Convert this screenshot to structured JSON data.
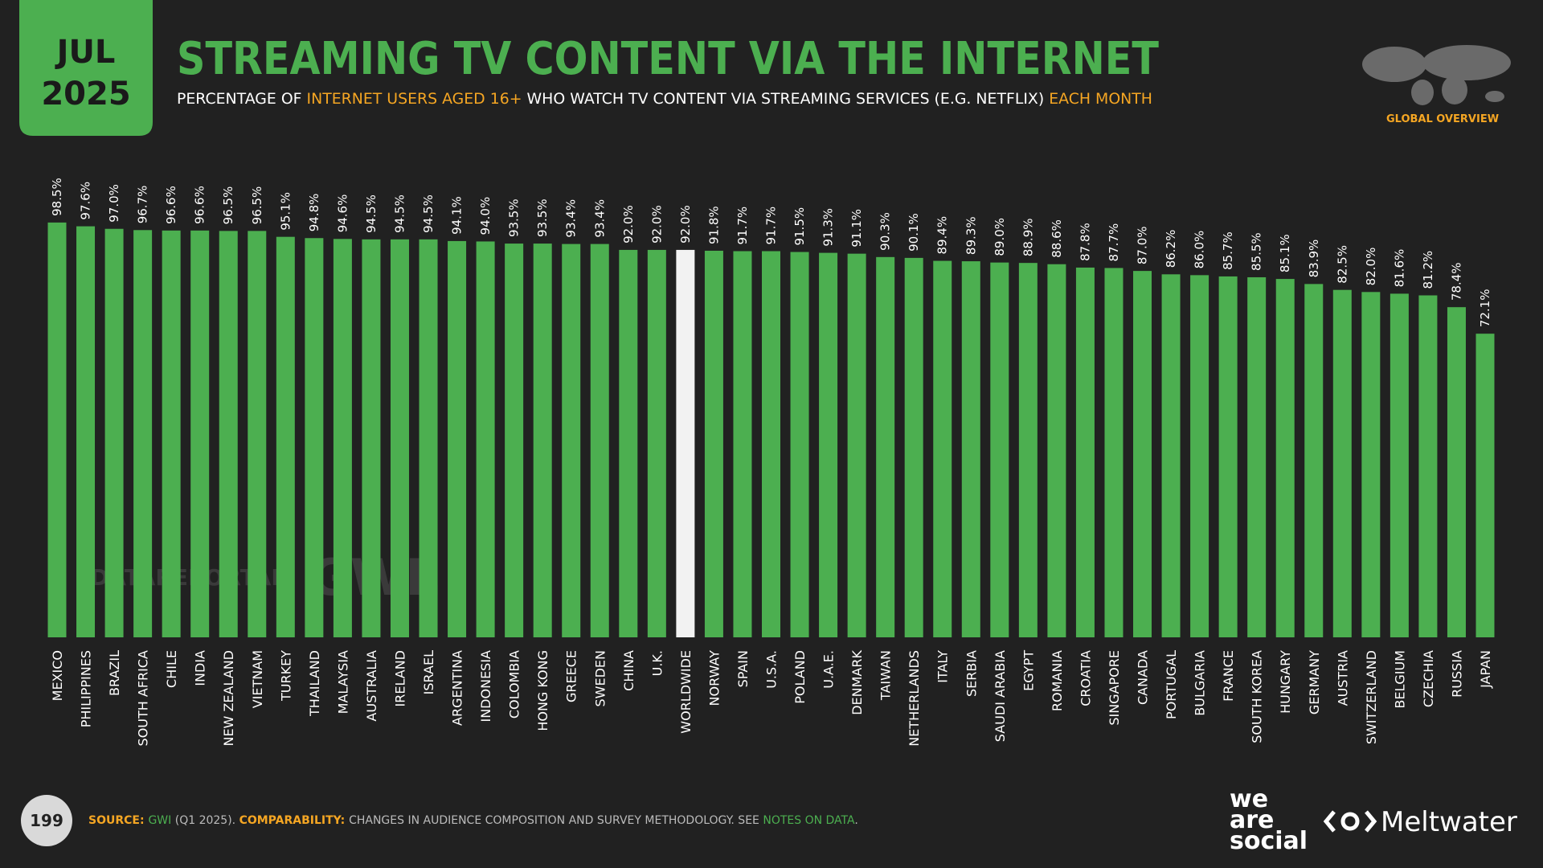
{
  "header": {
    "month": "JUL",
    "year": "2025",
    "title": "STREAMING TV CONTENT VIA THE INTERNET",
    "subtitle": [
      {
        "text": "PERCENTAGE OF ",
        "color": "#ffffff"
      },
      {
        "text": "INTERNET USERS AGED 16+",
        "color": "#f5a623"
      },
      {
        "text": " WHO WATCH TV CONTENT VIA STREAMING SERVICES (E.G. NETFLIX) ",
        "color": "#ffffff"
      },
      {
        "text": "EACH MONTH",
        "color": "#f5a623"
      }
    ],
    "badge": "GLOBAL OVERVIEW"
  },
  "watermarks": [
    "DATAREPORTAL",
    "GWI."
  ],
  "footer": {
    "page": "199",
    "source": [
      {
        "text": "SOURCE: ",
        "color": "#f5a623"
      },
      {
        "text": "GWI",
        "color": "#4caf50"
      },
      {
        "text": " (Q1 2025). ",
        "color": "#bbbbbb"
      },
      {
        "text": "COMPARABILITY: ",
        "color": "#f5a623"
      },
      {
        "text": "CHANGES IN AUDIENCE COMPOSITION AND SURVEY METHODOLOGY. SEE ",
        "color": "#bbbbbb"
      },
      {
        "text": "NOTES ON DATA",
        "color": "#4caf50"
      },
      {
        "text": ".",
        "color": "#bbbbbb"
      }
    ],
    "logos": [
      "we",
      "are",
      "social",
      "Meltwater"
    ]
  },
  "chart_data": {
    "type": "bar",
    "ylim": [
      0,
      100
    ],
    "categories": [
      "MEXICO",
      "PHILIPPINES",
      "BRAZIL",
      "SOUTH AFRICA",
      "CHILE",
      "INDIA",
      "NEW ZEALAND",
      "VIETNAM",
      "TURKEY",
      "THAILAND",
      "MALAYSIA",
      "AUSTRALIA",
      "IRELAND",
      "ISRAEL",
      "ARGENTINA",
      "INDONESIA",
      "COLOMBIA",
      "HONG KONG",
      "GREECE",
      "SWEDEN",
      "CHINA",
      "U.K.",
      "WORLDWIDE",
      "NORWAY",
      "SPAIN",
      "U.S.A.",
      "POLAND",
      "U.A.E.",
      "DENMARK",
      "TAIWAN",
      "NETHERLANDS",
      "ITALY",
      "SERBIA",
      "SAUDI ARABIA",
      "EGYPT",
      "ROMANIA",
      "CROATIA",
      "SINGAPORE",
      "CANADA",
      "PORTUGAL",
      "BULGARIA",
      "FRANCE",
      "SOUTH KOREA",
      "HUNGARY",
      "GERMANY",
      "AUSTRIA",
      "SWITZERLAND",
      "BELGIUM",
      "CZECHIA",
      "RUSSIA",
      "JAPAN"
    ],
    "values": [
      98.5,
      97.6,
      97.0,
      96.7,
      96.6,
      96.6,
      96.5,
      96.5,
      95.1,
      94.8,
      94.6,
      94.5,
      94.5,
      94.5,
      94.1,
      94.0,
      93.5,
      93.5,
      93.4,
      93.4,
      92.0,
      92.0,
      92.0,
      91.8,
      91.7,
      91.7,
      91.5,
      91.3,
      91.1,
      90.3,
      90.1,
      89.4,
      89.3,
      89.0,
      88.9,
      88.6,
      87.8,
      87.7,
      87.0,
      86.2,
      86.0,
      85.7,
      85.5,
      85.1,
      83.9,
      82.5,
      82.0,
      81.6,
      81.2,
      78.4,
      72.1
    ],
    "value_labels": [
      "98.5%",
      "97.6%",
      "97.0%",
      "96.7%",
      "96.6%",
      "96.6%",
      "96.5%",
      "96.5%",
      "95.1%",
      "94.8%",
      "94.6%",
      "94.5%",
      "94.5%",
      "94.5%",
      "94.1%",
      "94.0%",
      "93.5%",
      "93.5%",
      "93.4%",
      "93.4%",
      "92.0%",
      "92.0%",
      "92.0%",
      "91.8%",
      "91.7%",
      "91.7%",
      "91.5%",
      "91.3%",
      "91.1%",
      "90.3%",
      "90.1%",
      "89.4%",
      "89.3%",
      "89.0%",
      "88.9%",
      "88.6%",
      "87.8%",
      "87.7%",
      "87.0%",
      "86.2%",
      "86.0%",
      "85.7%",
      "85.5%",
      "85.1%",
      "83.9%",
      "82.5%",
      "82.0%",
      "81.6%",
      "81.2%",
      "78.4%",
      "72.1%"
    ],
    "colors": [
      "#4caf50",
      "#4caf50",
      "#4caf50",
      "#4caf50",
      "#4caf50",
      "#4caf50",
      "#4caf50",
      "#4caf50",
      "#4caf50",
      "#4caf50",
      "#4caf50",
      "#4caf50",
      "#4caf50",
      "#4caf50",
      "#4caf50",
      "#4caf50",
      "#4caf50",
      "#4caf50",
      "#4caf50",
      "#4caf50",
      "#4caf50",
      "#4caf50",
      "#f2f2f2",
      "#4caf50",
      "#4caf50",
      "#4caf50",
      "#4caf50",
      "#4caf50",
      "#4caf50",
      "#4caf50",
      "#4caf50",
      "#4caf50",
      "#4caf50",
      "#4caf50",
      "#4caf50",
      "#4caf50",
      "#4caf50",
      "#4caf50",
      "#4caf50",
      "#4caf50",
      "#4caf50",
      "#4caf50",
      "#4caf50",
      "#4caf50",
      "#4caf50",
      "#4caf50",
      "#4caf50",
      "#4caf50",
      "#4caf50",
      "#4caf50",
      "#4caf50"
    ]
  }
}
